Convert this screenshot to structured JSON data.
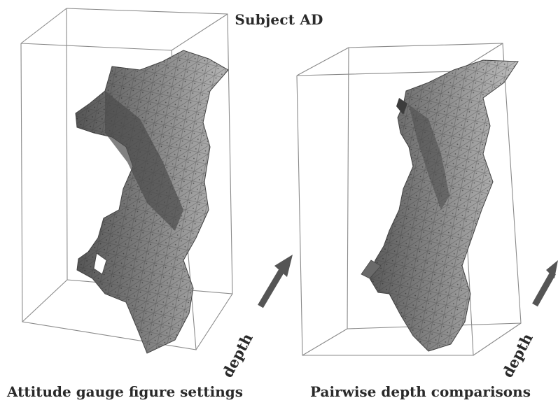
{
  "figure": {
    "title": "Subject AD",
    "panels": [
      {
        "caption": "Attitude gauge figure settings",
        "axis_label": "depth"
      },
      {
        "caption": "Pairwise depth comparisons",
        "axis_label": "depth"
      }
    ],
    "colors": {
      "box_line": "#8a8a8a",
      "surface_dark": "#5c5c5c",
      "surface_mid": "#8e8e8e",
      "surface_light": "#b9b9b9",
      "mesh": "#3a3a3a",
      "arrow": "#555555"
    }
  }
}
